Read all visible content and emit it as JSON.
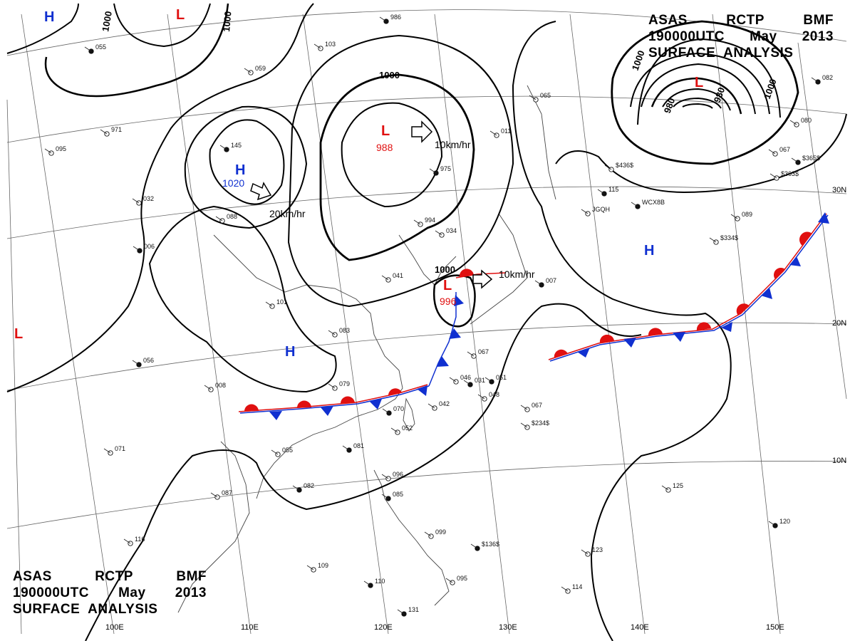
{
  "title": {
    "line1": [
      "ASAS",
      "RCTP",
      "BMF"
    ],
    "line2": [
      "190000UTC",
      "May",
      "2013"
    ],
    "line3": "SURFACE  ANALYSIS"
  },
  "latitude_labels": [
    "30N",
    "20N",
    "10N"
  ],
  "longitude_labels": [
    "100E",
    "110E",
    "120E",
    "130E",
    "140E",
    "150E"
  ],
  "isobar_labels": [
    "1000",
    "1000",
    "1000",
    "1000",
    "1000",
    "1000",
    "980",
    "980"
  ],
  "pressure_systems": [
    {
      "type": "H",
      "value": ""
    },
    {
      "type": "L",
      "value": ""
    },
    {
      "type": "H",
      "value": "1020"
    },
    {
      "type": "L",
      "value": "988"
    },
    {
      "type": "L",
      "value": ""
    },
    {
      "type": "L",
      "value": "996"
    },
    {
      "type": "H",
      "value": ""
    },
    {
      "type": "H",
      "value": ""
    },
    {
      "type": "L",
      "value": ""
    }
  ],
  "movements": [
    "10km/hr",
    "20km/hr",
    "10km/hr"
  ],
  "station_labels": [
    "986",
    "103",
    "059",
    "055",
    "971",
    "095",
    "145",
    "088",
    "032",
    "006",
    "101",
    "083",
    "056",
    "008",
    "079",
    "070",
    "071",
    "055",
    "081",
    "052",
    "042",
    "082",
    "087",
    "096",
    "085",
    "116",
    "109",
    "110",
    "099",
    "095",
    "131",
    "114",
    "123",
    "120",
    "125",
    "067",
    "051",
    "046",
    "089",
    "082",
    "080",
    "067",
    "115",
    "011",
    "065",
    "975",
    "994",
    "034",
    "007",
    "041",
    "067",
    "031",
    "048",
    "$436$",
    "$365$",
    "$363$",
    "$334$",
    "$136$",
    "$234$",
    "JGQH",
    "WCX8B"
  ],
  "colors": {
    "high": "#1030d0",
    "low": "#e01010",
    "line": "#000000"
  }
}
